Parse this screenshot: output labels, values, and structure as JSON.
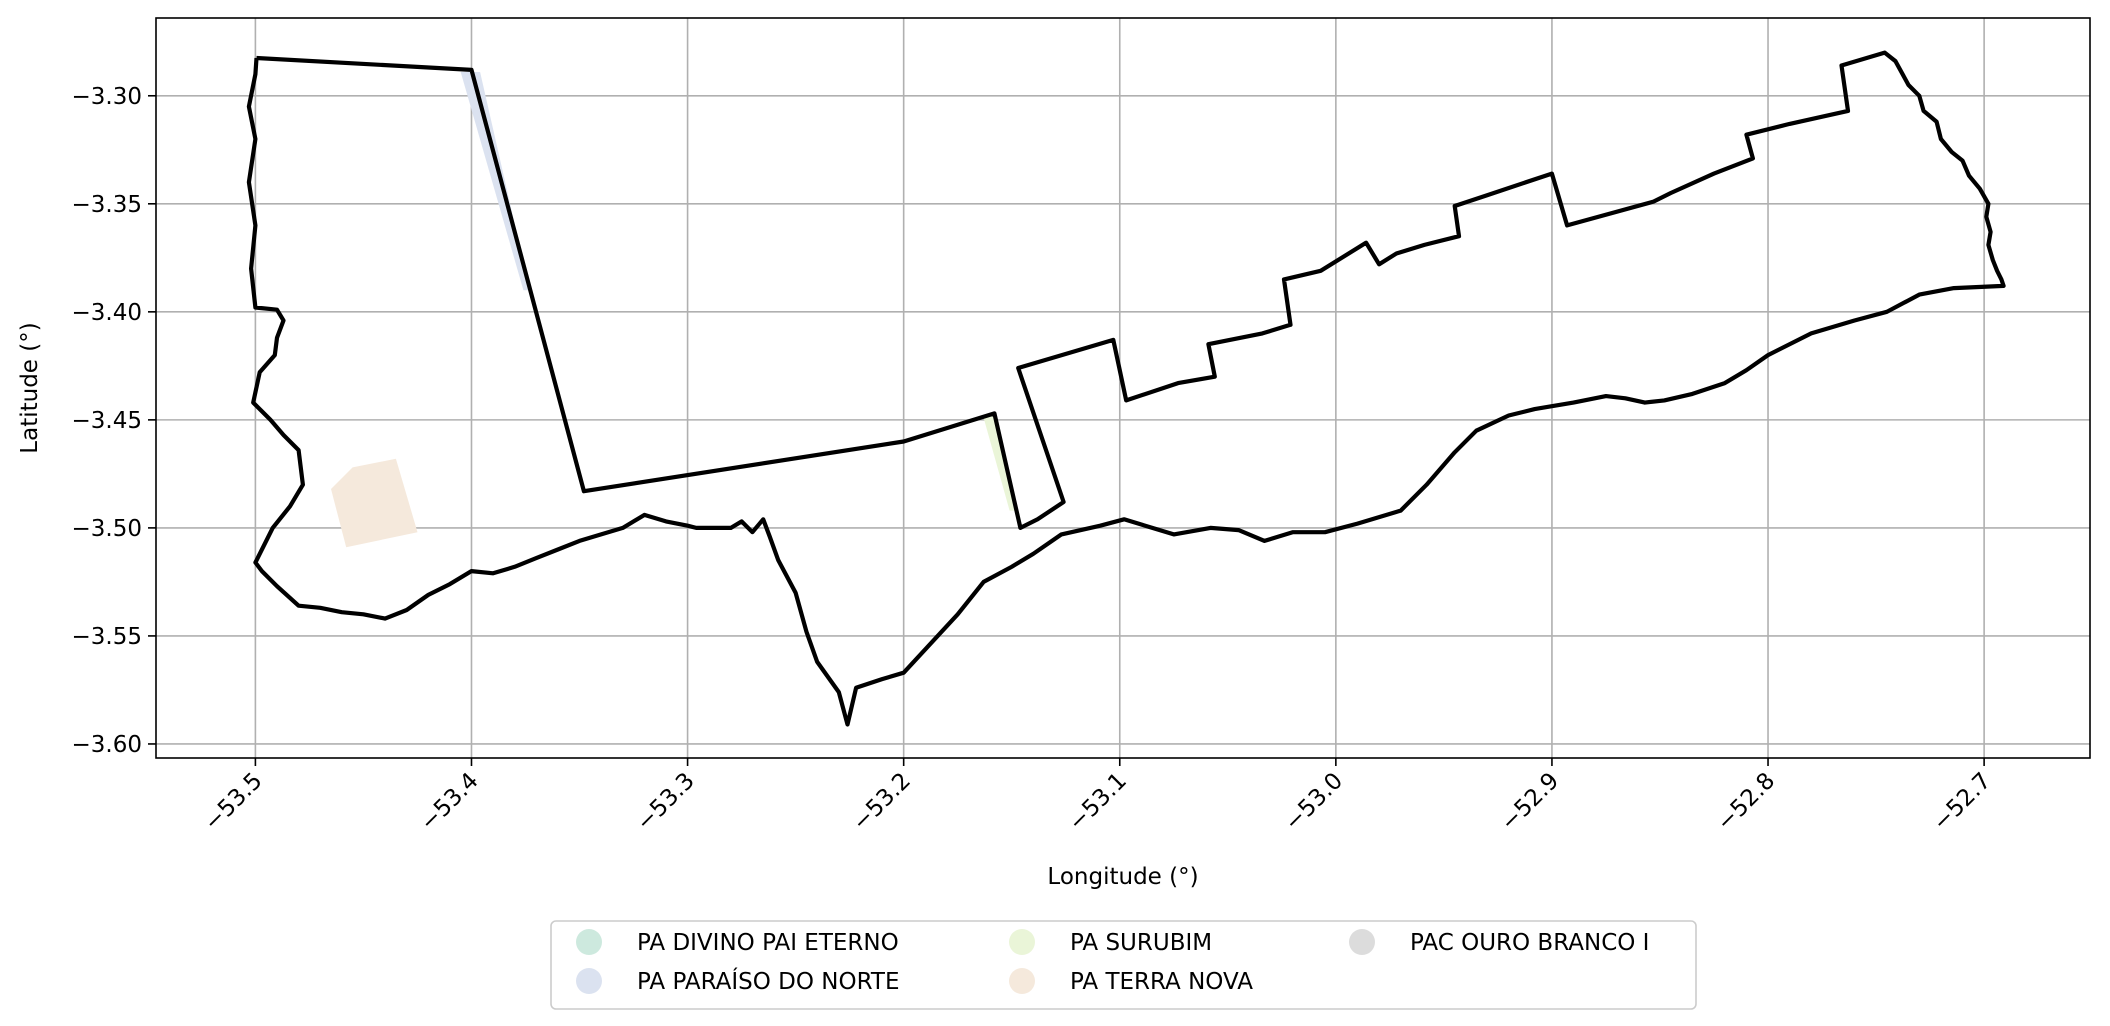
{
  "chart_data": {
    "type": "map",
    "xlabel": "Longitude (°)",
    "ylabel": "Latitude (°)",
    "xlim": [
      -53.546,
      -52.651
    ],
    "ylim": [
      -3.6065,
      -3.264
    ],
    "x_ticks": [
      -53.5,
      -53.4,
      -53.3,
      -53.2,
      -53.1,
      -53.0,
      -52.9,
      -52.8,
      -52.7
    ],
    "x_tick_labels": [
      "−53.5",
      "−53.4",
      "−53.3",
      "−53.2",
      "−53.1",
      "−53.0",
      "−52.9",
      "−52.8",
      "−52.7"
    ],
    "y_ticks": [
      -3.3,
      -3.35,
      -3.4,
      -3.45,
      -3.5,
      -3.55,
      -3.6
    ],
    "y_tick_labels": [
      "−3.30",
      "−3.35",
      "−3.40",
      "−3.45",
      "−3.50",
      "−3.55",
      "−3.60"
    ],
    "grid": true,
    "legend": {
      "placement": "bottom-center",
      "columns": 3,
      "entries": [
        {
          "label": "PA DIVINO PAI ETERNO",
          "color": "#cde9de"
        },
        {
          "label": "PA PARAÍSO DO NORTE",
          "color": "#dbe2f0"
        },
        {
          "label": "PA SURUBIM",
          "color": "#eaf5d8"
        },
        {
          "label": "PA TERRA NOVA",
          "color": "#f5e9dc"
        },
        {
          "label": "PAC OURO BRANCO I",
          "color": "#dcdcdc"
        }
      ]
    },
    "boundary": {
      "color": "#000000",
      "points": [
        [
          -53.4995,
          -3.2825
        ],
        [
          -53.4,
          -3.288
        ],
        [
          -53.348,
          -3.483
        ],
        [
          -53.2,
          -3.46
        ],
        [
          -53.158,
          -3.447
        ],
        [
          -53.146,
          -3.5
        ],
        [
          -53.138,
          -3.496
        ],
        [
          -53.126,
          -3.488
        ],
        [
          -53.147,
          -3.426
        ],
        [
          -53.103,
          -3.413
        ],
        [
          -53.097,
          -3.441
        ],
        [
          -53.073,
          -3.433
        ],
        [
          -53.056,
          -3.43
        ],
        [
          -53.059,
          -3.415
        ],
        [
          -53.034,
          -3.41
        ],
        [
          -53.021,
          -3.406
        ],
        [
          -53.024,
          -3.385
        ],
        [
          -53.007,
          -3.381
        ],
        [
          -52.986,
          -3.368
        ],
        [
          -52.98,
          -3.378
        ],
        [
          -52.972,
          -3.373
        ],
        [
          -52.959,
          -3.369
        ],
        [
          -52.943,
          -3.365
        ],
        [
          -52.945,
          -3.351
        ],
        [
          -52.93,
          -3.346
        ],
        [
          -52.9,
          -3.336
        ],
        [
          -52.893,
          -3.36
        ],
        [
          -52.853,
          -3.349
        ],
        [
          -52.845,
          -3.345
        ],
        [
          -52.825,
          -3.336
        ],
        [
          -52.807,
          -3.329
        ],
        [
          -52.81,
          -3.318
        ],
        [
          -52.79,
          -3.313
        ],
        [
          -52.763,
          -3.307
        ],
        [
          -52.766,
          -3.286
        ],
        [
          -52.746,
          -3.28
        ],
        [
          -52.741,
          -3.284
        ],
        [
          -52.735,
          -3.295
        ],
        [
          -52.73,
          -3.3
        ],
        [
          -52.728,
          -3.307
        ],
        [
          -52.722,
          -3.312
        ],
        [
          -52.72,
          -3.32
        ],
        [
          -52.715,
          -3.326
        ],
        [
          -52.71,
          -3.33
        ],
        [
          -52.707,
          -3.337
        ],
        [
          -52.702,
          -3.343
        ],
        [
          -52.698,
          -3.35
        ],
        [
          -52.699,
          -3.356
        ],
        [
          -52.697,
          -3.363
        ],
        [
          -52.698,
          -3.369
        ],
        [
          -52.696,
          -3.376
        ],
        [
          -52.694,
          -3.381
        ],
        [
          -52.692,
          -3.385
        ],
        [
          -52.691,
          -3.388
        ],
        [
          -52.714,
          -3.389
        ],
        [
          -52.73,
          -3.392
        ],
        [
          -52.745,
          -3.4
        ],
        [
          -52.76,
          -3.404
        ],
        [
          -52.78,
          -3.41
        ],
        [
          -52.8,
          -3.42
        ],
        [
          -52.81,
          -3.427
        ],
        [
          -52.82,
          -3.433
        ],
        [
          -52.835,
          -3.438
        ],
        [
          -52.848,
          -3.441
        ],
        [
          -52.857,
          -3.442
        ],
        [
          -52.866,
          -3.44
        ],
        [
          -52.875,
          -3.439
        ],
        [
          -52.89,
          -3.442
        ],
        [
          -52.908,
          -3.445
        ],
        [
          -52.92,
          -3.448
        ],
        [
          -52.935,
          -3.455
        ],
        [
          -52.945,
          -3.465
        ],
        [
          -52.958,
          -3.48
        ],
        [
          -52.97,
          -3.492
        ],
        [
          -52.99,
          -3.498
        ],
        [
          -53.005,
          -3.502
        ],
        [
          -53.02,
          -3.502
        ],
        [
          -53.033,
          -3.506
        ],
        [
          -53.045,
          -3.501
        ],
        [
          -53.058,
          -3.5
        ],
        [
          -53.075,
          -3.503
        ],
        [
          -53.098,
          -3.496
        ],
        [
          -53.109,
          -3.499
        ],
        [
          -53.127,
          -3.503
        ],
        [
          -53.14,
          -3.512
        ],
        [
          -53.15,
          -3.518
        ],
        [
          -53.163,
          -3.525
        ],
        [
          -53.175,
          -3.54
        ],
        [
          -53.2,
          -3.567
        ],
        [
          -53.21,
          -3.57
        ],
        [
          -53.222,
          -3.574
        ],
        [
          -53.226,
          -3.591
        ],
        [
          -53.23,
          -3.576
        ],
        [
          -53.24,
          -3.562
        ],
        [
          -53.245,
          -3.548
        ],
        [
          -53.25,
          -3.53
        ],
        [
          -53.258,
          -3.515
        ],
        [
          -53.262,
          -3.504
        ],
        [
          -53.265,
          -3.496
        ],
        [
          -53.27,
          -3.502
        ],
        [
          -53.275,
          -3.497
        ],
        [
          -53.28,
          -3.5
        ],
        [
          -53.287,
          -3.5
        ],
        [
          -53.296,
          -3.5
        ],
        [
          -53.3,
          -3.499
        ],
        [
          -53.31,
          -3.497
        ],
        [
          -53.32,
          -3.494
        ],
        [
          -53.33,
          -3.5
        ],
        [
          -53.34,
          -3.503
        ],
        [
          -53.35,
          -3.506
        ],
        [
          -53.36,
          -3.51
        ],
        [
          -53.37,
          -3.514
        ],
        [
          -53.38,
          -3.518
        ],
        [
          -53.39,
          -3.521
        ],
        [
          -53.4,
          -3.52
        ],
        [
          -53.41,
          -3.526
        ],
        [
          -53.42,
          -3.531
        ],
        [
          -53.43,
          -3.538
        ],
        [
          -53.44,
          -3.542
        ],
        [
          -53.45,
          -3.54
        ],
        [
          -53.46,
          -3.539
        ],
        [
          -53.47,
          -3.537
        ],
        [
          -53.48,
          -3.536
        ],
        [
          -53.49,
          -3.527
        ],
        [
          -53.497,
          -3.52
        ],
        [
          -53.5,
          -3.516
        ],
        [
          -53.492,
          -3.5
        ],
        [
          -53.484,
          -3.49
        ],
        [
          -53.478,
          -3.48
        ],
        [
          -53.48,
          -3.464
        ],
        [
          -53.487,
          -3.457
        ],
        [
          -53.493,
          -3.45
        ],
        [
          -53.501,
          -3.442
        ],
        [
          -53.498,
          -3.428
        ],
        [
          -53.491,
          -3.42
        ],
        [
          -53.49,
          -3.412
        ],
        [
          -53.487,
          -3.404
        ],
        [
          -53.49,
          -3.399
        ],
        [
          -53.5,
          -3.398
        ],
        [
          -53.502,
          -3.38
        ],
        [
          -53.5,
          -3.36
        ],
        [
          -53.503,
          -3.34
        ],
        [
          -53.5,
          -3.32
        ],
        [
          -53.503,
          -3.305
        ],
        [
          -53.5,
          -3.29
        ],
        [
          -53.4995,
          -3.2825
        ]
      ]
    },
    "parcels": [
      {
        "name": "PA TERRA NOVA",
        "color": "#f5e9dc",
        "points": [
          [
            -53.465,
            -3.482
          ],
          [
            -53.455,
            -3.472
          ],
          [
            -53.435,
            -3.468
          ],
          [
            -53.425,
            -3.502
          ],
          [
            -53.458,
            -3.509
          ]
        ]
      },
      {
        "name": "PA PARAÍSO DO NORTE",
        "color": "#dbe2f0",
        "points": [
          [
            -53.405,
            -3.289
          ],
          [
            -53.396,
            -3.289
          ],
          [
            -53.373,
            -3.39
          ],
          [
            -53.376,
            -3.39
          ]
        ]
      },
      {
        "name": "PA SURUBIM",
        "color": "#eaf5d8",
        "points": [
          [
            -53.163,
            -3.449
          ],
          [
            -53.157,
            -3.448
          ],
          [
            -53.147,
            -3.492
          ],
          [
            -53.151,
            -3.492
          ]
        ]
      }
    ]
  }
}
